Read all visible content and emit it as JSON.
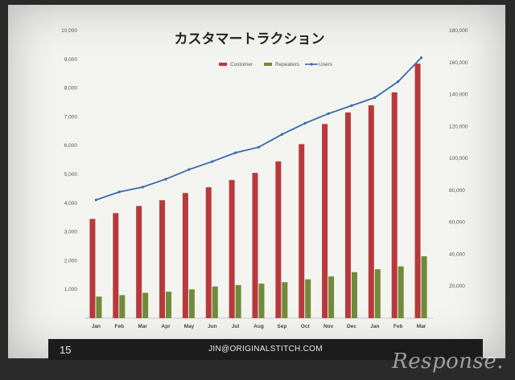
{
  "slide": {
    "page_number": "15",
    "footer_email": "JIN@ORIGINALSTITCH.COM"
  },
  "watermark": "Response.",
  "colors": {
    "customer": "#b8393c",
    "repeaters": "#6f8b3a",
    "users": "#3a6aa8"
  },
  "chart_data": {
    "type": "bar",
    "title": "カスタマートラクション",
    "legend": [
      "Customer",
      "Repeaters",
      "Users"
    ],
    "legend_position": "top",
    "categories": [
      "Jan",
      "Feb",
      "Mar",
      "Apr",
      "May",
      "Jun",
      "Jul",
      "Aug",
      "Sep",
      "Oct",
      "Nov",
      "Dec",
      "Jan",
      "Feb",
      "Mar"
    ],
    "y_left": {
      "ylim": [
        0,
        10000
      ],
      "ticks": [
        "1,000",
        "2,000",
        "3,000",
        "4,000",
        "5,000",
        "6,000",
        "7,000",
        "8,000",
        "9,000",
        "10,000"
      ]
    },
    "y_right": {
      "ylim": [
        0,
        180000
      ],
      "ticks": [
        "20,000",
        "40,000",
        "60,000",
        "80,000",
        "100,000",
        "120,000",
        "140,000",
        "160,000",
        "180,000"
      ]
    },
    "series": [
      {
        "name": "Customer",
        "axis": "left",
        "type": "bar",
        "values": [
          3450,
          3650,
          3900,
          4100,
          4350,
          4550,
          4800,
          5050,
          5450,
          6050,
          6750,
          7150,
          7400,
          7850,
          8850
        ]
      },
      {
        "name": "Repeaters",
        "axis": "left",
        "type": "bar",
        "values": [
          750,
          800,
          880,
          920,
          1000,
          1100,
          1150,
          1200,
          1250,
          1350,
          1450,
          1600,
          1700,
          1800,
          2150
        ]
      },
      {
        "name": "Users",
        "axis": "right",
        "type": "line",
        "values": [
          74000,
          79000,
          82000,
          87000,
          93000,
          98000,
          103500,
          107000,
          115000,
          122000,
          128000,
          133000,
          138000,
          148000,
          163000
        ]
      }
    ],
    "grid": false
  }
}
